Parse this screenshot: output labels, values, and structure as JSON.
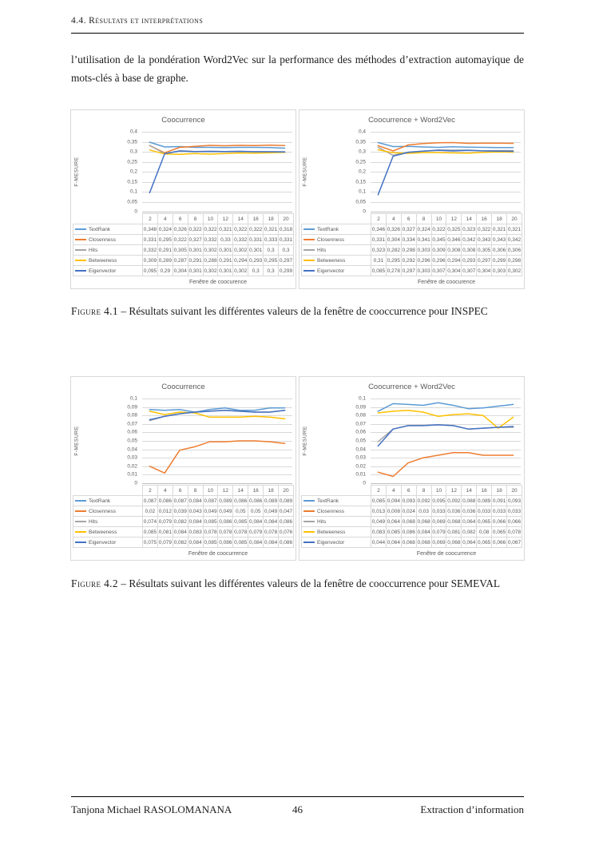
{
  "page": {
    "header": {
      "section": "4.4. Résultats et interprétations"
    },
    "paragraph": "l’utilisation de la pondération Word2Vec sur la performance des méthodes d’extraction automayique de mots-clés à base de graphe.",
    "figures": [
      {
        "caption_label": "Figure 4.1",
        "caption_text": " – Résultats suivant les différentes valeurs de la fenêtre de cooccurrence pour INSPEC"
      },
      {
        "caption_label": "Figure 4.2",
        "caption_text": " – Résultats suivant les différentes valeurs de la fenêtre de cooccurrence pour SEMEVAL"
      }
    ],
    "footer": {
      "left": "Tanjona Michael RASOLOMANANA",
      "page_number": "46",
      "right": "Extraction d’information"
    }
  },
  "chart_data": [
    {
      "type": "line",
      "title": "Coocurrence",
      "xlabel": "Fenêtre de coocurence",
      "ylabel": "F-MESURE",
      "ylim": [
        0,
        0.4
      ],
      "grid": true,
      "legend_position": "table-left",
      "yticks": [
        "0",
        "0,05",
        "0,1",
        "0,15",
        "0,2",
        "0,25",
        "0,3",
        "0,35",
        "0,4"
      ],
      "categories": [
        "2",
        "4",
        "6",
        "8",
        "10",
        "12",
        "14",
        "16",
        "18",
        "20"
      ],
      "series": [
        {
          "name": "TextRank",
          "color": "#5B9BD5",
          "values": [
            "0,348",
            "0,324",
            "0,326",
            "0,322",
            "0,322",
            "0,321",
            "0,322",
            "0,322",
            "0,321",
            "0,318"
          ]
        },
        {
          "name": "Closenness",
          "color": "#ED7D31",
          "values": [
            "0,331",
            "0,295",
            "0,322",
            "0,327",
            "0,332",
            "0,33",
            "0,332",
            "0,331",
            "0,333",
            "0,331"
          ]
        },
        {
          "name": "Hits",
          "color": "#A5A5A5",
          "values": [
            "0,332",
            "0,291",
            "0,305",
            "0,301",
            "0,302",
            "0,301",
            "0,302",
            "0,301",
            "0,3",
            "0,3"
          ]
        },
        {
          "name": "Betweeness",
          "color": "#FFC000",
          "values": [
            "0,309",
            "0,289",
            "0,287",
            "0,291",
            "0,288",
            "0,291",
            "0,294",
            "0,293",
            "0,295",
            "0,297"
          ]
        },
        {
          "name": "Eigenvector",
          "color": "#4472C4",
          "values": [
            "0,095",
            "0,29",
            "0,304",
            "0,301",
            "0,302",
            "0,301",
            "0,302",
            "0,3",
            "0,3",
            "0,299"
          ]
        }
      ]
    },
    {
      "type": "line",
      "title": "Coocurrence + Word2Vec",
      "xlabel": "Fenêtre de coocurence",
      "ylabel": "F-MESURE",
      "ylim": [
        0,
        0.4
      ],
      "grid": true,
      "legend_position": "table-left",
      "yticks": [
        "0",
        "0,05",
        "0,1",
        "0,15",
        "0,2",
        "0,25",
        "0,3",
        "0,35",
        "0,4"
      ],
      "categories": [
        "2",
        "4",
        "6",
        "8",
        "10",
        "12",
        "14",
        "16",
        "18",
        "20"
      ],
      "series": [
        {
          "name": "TextRank",
          "color": "#5B9BD5",
          "values": [
            "0,346",
            "0,326",
            "0,327",
            "0,324",
            "0,322",
            "0,325",
            "0,323",
            "0,322",
            "0,321",
            "0,321"
          ]
        },
        {
          "name": "Closenness",
          "color": "#ED7D31",
          "values": [
            "0,331",
            "0,304",
            "0,334",
            "0,341",
            "0,345",
            "0,346",
            "0,342",
            "0,343",
            "0,343",
            "0,342"
          ]
        },
        {
          "name": "Hits",
          "color": "#A5A5A5",
          "values": [
            "0,323",
            "0,282",
            "0,298",
            "0,303",
            "0,309",
            "0,308",
            "0,308",
            "0,305",
            "0,306",
            "0,306"
          ]
        },
        {
          "name": "Betweeness",
          "color": "#FFC000",
          "values": [
            "0,31",
            "0,295",
            "0,292",
            "0,296",
            "0,296",
            "0,294",
            "0,293",
            "0,297",
            "0,299",
            "0,298"
          ]
        },
        {
          "name": "Eigenvector",
          "color": "#4472C4",
          "values": [
            "0,085",
            "0,278",
            "0,297",
            "0,303",
            "0,307",
            "0,304",
            "0,307",
            "0,304",
            "0,303",
            "0,302"
          ]
        }
      ]
    },
    {
      "type": "line",
      "title": "Coocurrence",
      "xlabel": "Fenêtre de coocurrence",
      "ylabel": "F-MESURE",
      "ylim": [
        0,
        0.1
      ],
      "grid": true,
      "legend_position": "table-left",
      "yticks": [
        "0",
        "0,01",
        "0,02",
        "0,03",
        "0,04",
        "0,05",
        "0,06",
        "0,07",
        "0,08",
        "0,09",
        "0,1"
      ],
      "categories": [
        "2",
        "4",
        "6",
        "8",
        "10",
        "12",
        "14",
        "16",
        "18",
        "20"
      ],
      "series": [
        {
          "name": "TextRank",
          "color": "#5B9BD5",
          "values": [
            "0,087",
            "0,086",
            "0,087",
            "0,084",
            "0,087",
            "0,089",
            "0,086",
            "0,086",
            "0,089",
            "0,089"
          ]
        },
        {
          "name": "Closenness",
          "color": "#ED7D31",
          "values": [
            "0,02",
            "0,012",
            "0,039",
            "0,043",
            "0,049",
            "0,049",
            "0,05",
            "0,05",
            "0,049",
            "0,047"
          ]
        },
        {
          "name": "Hits",
          "color": "#A5A5A5",
          "values": [
            "0,074",
            "0,079",
            "0,082",
            "0,084",
            "0,085",
            "0,086",
            "0,085",
            "0,084",
            "0,084",
            "0,086"
          ]
        },
        {
          "name": "Betweeness",
          "color": "#FFC000",
          "values": [
            "0,085",
            "0,081",
            "0,084",
            "0,083",
            "0,078",
            "0,078",
            "0,078",
            "0,079",
            "0,078",
            "0,076"
          ]
        },
        {
          "name": "Eigenvector",
          "color": "#4472C4",
          "values": [
            "0,075",
            "0,079",
            "0,082",
            "0,084",
            "0,085",
            "0,086",
            "0,085",
            "0,084",
            "0,084",
            "0,086"
          ]
        }
      ]
    },
    {
      "type": "line",
      "title": "Coocurrence + Word2Vec",
      "xlabel": "Fenêtre de coocurrence",
      "ylabel": "F-MESURE",
      "ylim": [
        0,
        0.1
      ],
      "grid": true,
      "legend_position": "table-left",
      "yticks": [
        "0",
        "0,01",
        "0,02",
        "0,03",
        "0,04",
        "0,05",
        "0,06",
        "0,07",
        "0,08",
        "0,09",
        "0,1"
      ],
      "categories": [
        "2",
        "4",
        "6",
        "8",
        "10",
        "12",
        "14",
        "16",
        "18",
        "20"
      ],
      "series": [
        {
          "name": "TextRank",
          "color": "#5B9BD5",
          "values": [
            "0,085",
            "0,094",
            "0,093",
            "0,092",
            "0,095",
            "0,092",
            "0,088",
            "0,089",
            "0,091",
            "0,093"
          ]
        },
        {
          "name": "Closenness",
          "color": "#ED7D31",
          "values": [
            "0,013",
            "0,008",
            "0,024",
            "0,03",
            "0,033",
            "0,036",
            "0,036",
            "0,033",
            "0,033",
            "0,033"
          ]
        },
        {
          "name": "Hits",
          "color": "#A5A5A5",
          "values": [
            "0,049",
            "0,064",
            "0,068",
            "0,068",
            "0,069",
            "0,068",
            "0,064",
            "0,065",
            "0,066",
            "0,066"
          ]
        },
        {
          "name": "Betweeness",
          "color": "#FFC000",
          "values": [
            "0,083",
            "0,085",
            "0,086",
            "0,084",
            "0,079",
            "0,081",
            "0,082",
            "0,08",
            "0,065",
            "0,078"
          ]
        },
        {
          "name": "Eigenvector",
          "color": "#4472C4",
          "values": [
            "0,044",
            "0,064",
            "0,068",
            "0,068",
            "0,069",
            "0,068",
            "0,064",
            "0,065",
            "0,066",
            "0,067"
          ]
        }
      ]
    }
  ]
}
